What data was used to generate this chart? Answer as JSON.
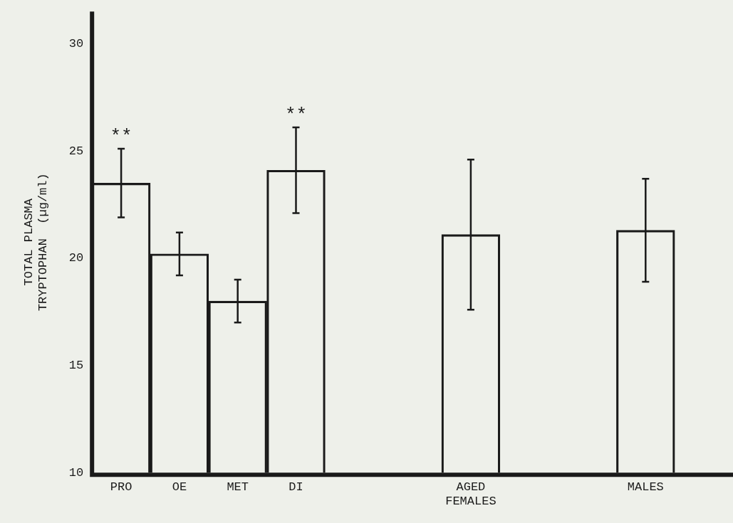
{
  "chart_data": {
    "type": "bar",
    "ylabel": "TOTAL PLASMA\nTRYPTOPHAN  (µg/ml)",
    "categories": [
      "PRO",
      "OE",
      "MET",
      "DI",
      null,
      null,
      "AGED\nFEMALES",
      null,
      null,
      "MALES",
      null
    ],
    "values": [
      23.5,
      20.2,
      18.0,
      24.1,
      null,
      null,
      21.1,
      null,
      null,
      21.3,
      null
    ],
    "errors": [
      1.6,
      1.0,
      1.0,
      2.0,
      null,
      null,
      3.5,
      null,
      null,
      2.4,
      null
    ],
    "color": "#1a1a1a",
    "ylim": [
      10,
      31.5
    ],
    "yticks": [
      10,
      15,
      20,
      25,
      30
    ],
    "grid": false,
    "annotations": [
      {
        "text": "**",
        "x": "PRO",
        "y": 23.5
      },
      {
        "text": "**",
        "x": "DI",
        "y": 24.1
      }
    ]
  }
}
